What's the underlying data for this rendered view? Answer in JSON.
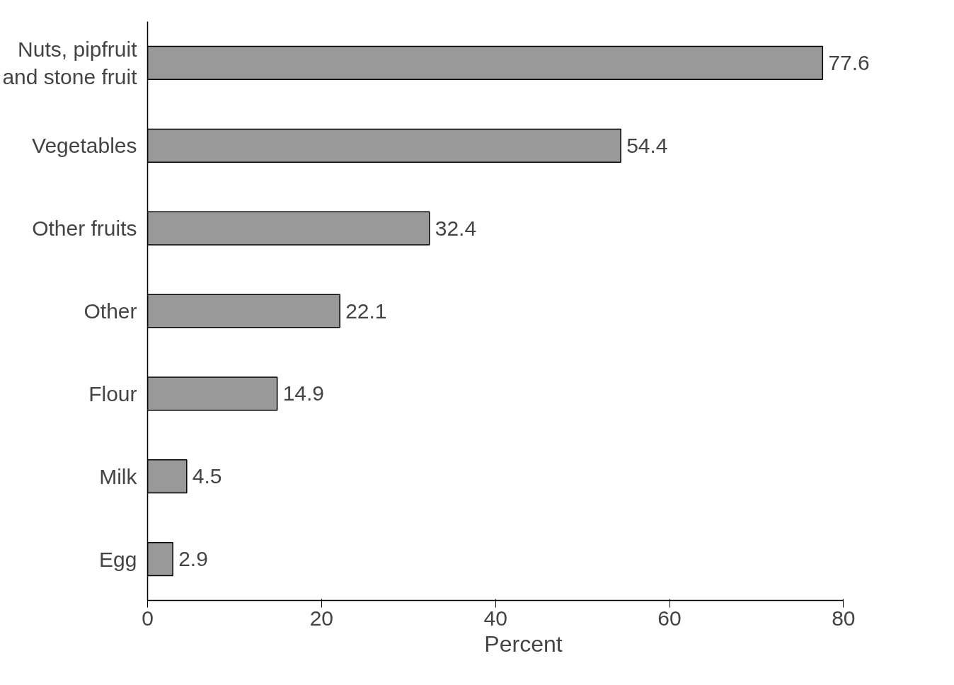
{
  "chart_data": {
    "type": "bar",
    "orientation": "horizontal",
    "xlabel": "Percent",
    "categories": [
      "Nuts, pipfruit\nand stone fruit",
      "Vegetables",
      "Other fruits",
      "Other",
      "Flour",
      "Milk",
      "Egg"
    ],
    "values": [
      77.6,
      54.4,
      32.4,
      22.1,
      14.9,
      4.5,
      2.9
    ],
    "color": "#999999",
    "xlim": [
      0,
      80
    ],
    "xticks": [
      0,
      20,
      40,
      60,
      80
    ],
    "data_labels": true,
    "grid": false
  }
}
